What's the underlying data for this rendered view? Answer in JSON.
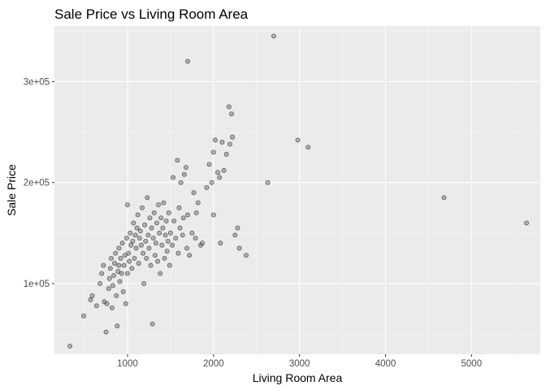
{
  "chart_data": {
    "type": "scatter",
    "title": "Sale Price vs Living Room Area",
    "xlabel": "Living Room Area",
    "ylabel": "Sale Price",
    "xlim": [
      150,
      5800
    ],
    "ylim": [
      30000,
      355000
    ],
    "x_ticks": [
      1000,
      2000,
      3000,
      4000,
      5000
    ],
    "x_tick_labels": [
      "1000",
      "2000",
      "3000",
      "4000",
      "5000"
    ],
    "y_ticks": [
      100000,
      200000,
      300000
    ],
    "y_tick_labels": [
      "1e+05",
      "2e+05",
      "3e+05"
    ],
    "grid": true,
    "legend": "none",
    "colors": {
      "panel": "#ebebeb",
      "grid_major": "#ffffff",
      "point_fill": "#7f7f7f",
      "point_stroke": "#000000"
    },
    "points": [
      [
        330,
        38000
      ],
      [
        490,
        68000
      ],
      [
        570,
        84000
      ],
      [
        590,
        88000
      ],
      [
        640,
        78000
      ],
      [
        680,
        100000
      ],
      [
        700,
        110000
      ],
      [
        720,
        118000
      ],
      [
        730,
        82000
      ],
      [
        750,
        52000
      ],
      [
        760,
        80000
      ],
      [
        780,
        95000
      ],
      [
        790,
        105000
      ],
      [
        800,
        115000
      ],
      [
        810,
        125000
      ],
      [
        820,
        76000
      ],
      [
        830,
        98000
      ],
      [
        840,
        108000
      ],
      [
        850,
        120000
      ],
      [
        860,
        130000
      ],
      [
        870,
        88000
      ],
      [
        880,
        58000
      ],
      [
        890,
        112000
      ],
      [
        900,
        118000
      ],
      [
        900,
        135000
      ],
      [
        910,
        102000
      ],
      [
        920,
        125000
      ],
      [
        930,
        110000
      ],
      [
        940,
        140000
      ],
      [
        950,
        92000
      ],
      [
        960,
        118000
      ],
      [
        970,
        128000
      ],
      [
        980,
        80000
      ],
      [
        990,
        145000
      ],
      [
        1000,
        110000
      ],
      [
        1000,
        178000
      ],
      [
        1010,
        130000
      ],
      [
        1020,
        122000
      ],
      [
        1030,
        150000
      ],
      [
        1040,
        138000
      ],
      [
        1050,
        115000
      ],
      [
        1060,
        142000
      ],
      [
        1070,
        160000
      ],
      [
        1080,
        125000
      ],
      [
        1090,
        148000
      ],
      [
        1100,
        135000
      ],
      [
        1110,
        155000
      ],
      [
        1120,
        168000
      ],
      [
        1130,
        120000
      ],
      [
        1140,
        145000
      ],
      [
        1150,
        152000
      ],
      [
        1160,
        138000
      ],
      [
        1170,
        175000
      ],
      [
        1180,
        130000
      ],
      [
        1190,
        100000
      ],
      [
        1200,
        158000
      ],
      [
        1210,
        142000
      ],
      [
        1220,
        125000
      ],
      [
        1230,
        185000
      ],
      [
        1240,
        148000
      ],
      [
        1250,
        135000
      ],
      [
        1260,
        165000
      ],
      [
        1270,
        118000
      ],
      [
        1280,
        155000
      ],
      [
        1290,
        60000
      ],
      [
        1300,
        145000
      ],
      [
        1310,
        170000
      ],
      [
        1320,
        128000
      ],
      [
        1330,
        140000
      ],
      [
        1340,
        160000
      ],
      [
        1350,
        122000
      ],
      [
        1360,
        178000
      ],
      [
        1370,
        150000
      ],
      [
        1380,
        110000
      ],
      [
        1390,
        165000
      ],
      [
        1400,
        138000
      ],
      [
        1410,
        155000
      ],
      [
        1420,
        180000
      ],
      [
        1430,
        125000
      ],
      [
        1440,
        148000
      ],
      [
        1450,
        162000
      ],
      [
        1460,
        132000
      ],
      [
        1470,
        142000
      ],
      [
        1480,
        170000
      ],
      [
        1490,
        118000
      ],
      [
        1500,
        150000
      ],
      [
        1520,
        138000
      ],
      [
        1530,
        205000
      ],
      [
        1540,
        162000
      ],
      [
        1560,
        145000
      ],
      [
        1580,
        222000
      ],
      [
        1590,
        130000
      ],
      [
        1600,
        175000
      ],
      [
        1610,
        155000
      ],
      [
        1620,
        200000
      ],
      [
        1640,
        148000
      ],
      [
        1650,
        165000
      ],
      [
        1660,
        208000
      ],
      [
        1680,
        215000
      ],
      [
        1690,
        135000
      ],
      [
        1700,
        320000
      ],
      [
        1700,
        168000
      ],
      [
        1720,
        128000
      ],
      [
        1750,
        150000
      ],
      [
        1770,
        190000
      ],
      [
        1790,
        145000
      ],
      [
        1800,
        170000
      ],
      [
        1820,
        180000
      ],
      [
        1850,
        138000
      ],
      [
        1870,
        140000
      ],
      [
        1920,
        195000
      ],
      [
        1950,
        218000
      ],
      [
        1980,
        200000
      ],
      [
        2000,
        230000
      ],
      [
        2000,
        168000
      ],
      [
        2020,
        242000
      ],
      [
        2050,
        210000
      ],
      [
        2070,
        205000
      ],
      [
        2080,
        140000
      ],
      [
        2100,
        240000
      ],
      [
        2120,
        212000
      ],
      [
        2150,
        228000
      ],
      [
        2180,
        275000
      ],
      [
        2190,
        238000
      ],
      [
        2210,
        268000
      ],
      [
        2220,
        245000
      ],
      [
        2250,
        148000
      ],
      [
        2280,
        155000
      ],
      [
        2300,
        135000
      ],
      [
        2380,
        128000
      ],
      [
        2630,
        200000
      ],
      [
        2700,
        345000
      ],
      [
        2980,
        242000
      ],
      [
        3100,
        235000
      ],
      [
        4680,
        185000
      ],
      [
        5640,
        160000
      ]
    ]
  }
}
